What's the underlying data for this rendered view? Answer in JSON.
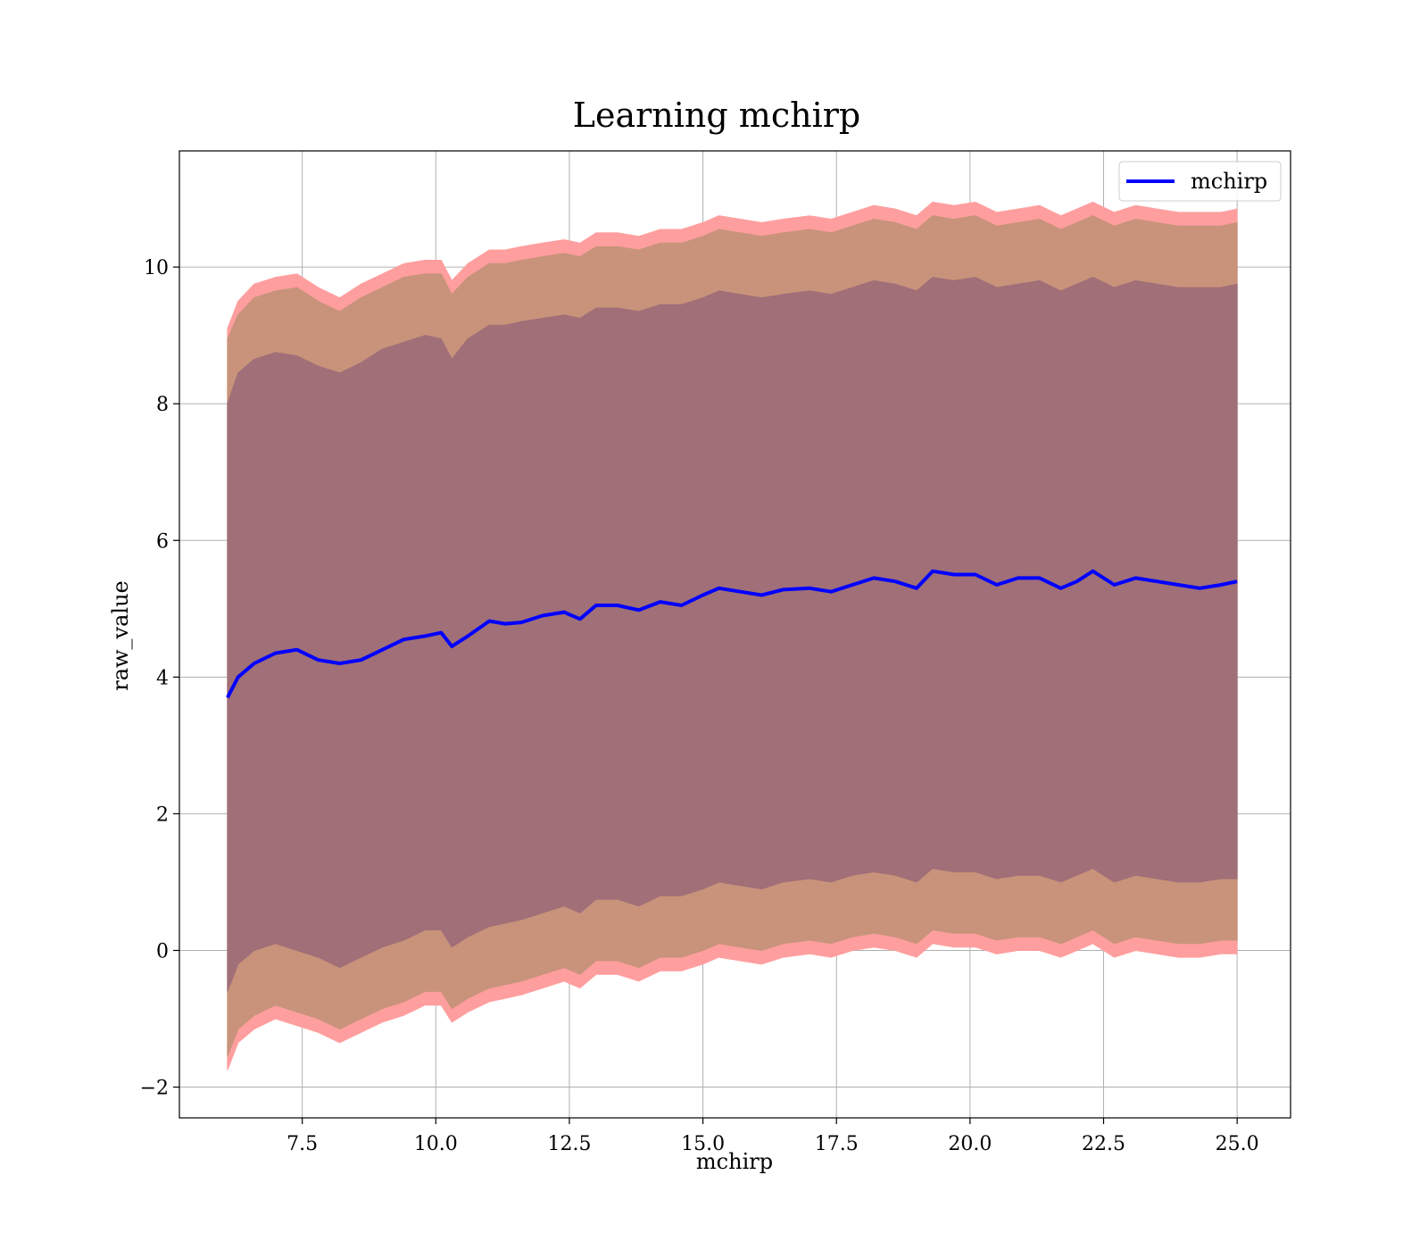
{
  "chart_data": {
    "type": "line",
    "title": "Learning mchirp",
    "xlabel": "mchirp",
    "ylabel": "raw_value",
    "xlim": [
      5.2,
      26.0
    ],
    "ylim": [
      -2.45,
      11.7
    ],
    "x_ticks": [
      7.5,
      10.0,
      12.5,
      15.0,
      17.5,
      20.0,
      22.5,
      25.0
    ],
    "x_tick_labels": [
      "7.5",
      "10.0",
      "12.5",
      "15.0",
      "17.5",
      "20.0",
      "22.5",
      "25.0"
    ],
    "y_ticks": [
      -2,
      0,
      2,
      4,
      6,
      8,
      10
    ],
    "y_tick_labels": [
      "−2",
      "0",
      "2",
      "4",
      "6",
      "8",
      "10"
    ],
    "grid": true,
    "legend_position": "top-right",
    "colors": {
      "line": "#0000ff",
      "outer_band": "#ff9e9e",
      "mid_band": "#c8937a",
      "inner_band": "#a06f78"
    },
    "x": [
      6.1,
      6.3,
      6.6,
      7.0,
      7.4,
      7.8,
      8.2,
      8.6,
      9.0,
      9.4,
      9.8,
      10.1,
      10.3,
      10.6,
      11.0,
      11.3,
      11.6,
      12.0,
      12.4,
      12.7,
      13.0,
      13.4,
      13.8,
      14.2,
      14.6,
      15.0,
      15.3,
      15.7,
      16.1,
      16.5,
      17.0,
      17.4,
      17.8,
      18.2,
      18.6,
      19.0,
      19.3,
      19.7,
      20.1,
      20.5,
      20.9,
      21.3,
      21.7,
      22.0,
      22.3,
      22.7,
      23.1,
      23.5,
      23.9,
      24.3,
      24.7,
      25.0
    ],
    "series": [
      {
        "name": "mchirp",
        "values": [
          3.7,
          4.0,
          4.2,
          4.35,
          4.4,
          4.25,
          4.2,
          4.25,
          4.4,
          4.55,
          4.6,
          4.65,
          4.45,
          4.6,
          4.82,
          4.78,
          4.8,
          4.9,
          4.95,
          4.85,
          5.05,
          5.05,
          4.98,
          5.1,
          5.05,
          5.2,
          5.3,
          5.25,
          5.2,
          5.28,
          5.3,
          5.25,
          5.35,
          5.45,
          5.4,
          5.3,
          5.55,
          5.5,
          5.5,
          5.35,
          5.45,
          5.45,
          5.3,
          5.4,
          5.55,
          5.35,
          5.45,
          5.4,
          5.35,
          5.3,
          5.35,
          5.4
        ]
      }
    ],
    "bands": [
      {
        "lower": [
          -1.75,
          -1.35,
          -1.15,
          -1.0,
          -1.1,
          -1.2,
          -1.35,
          -1.2,
          -1.05,
          -0.95,
          -0.8,
          -0.8,
          -1.05,
          -0.9,
          -0.75,
          -0.7,
          -0.65,
          -0.55,
          -0.45,
          -0.55,
          -0.35,
          -0.35,
          -0.45,
          -0.3,
          -0.3,
          -0.2,
          -0.1,
          -0.15,
          -0.2,
          -0.1,
          -0.05,
          -0.1,
          0.0,
          0.05,
          0.0,
          -0.1,
          0.1,
          0.05,
          0.05,
          -0.05,
          0.0,
          0.0,
          -0.1,
          0.0,
          0.1,
          -0.1,
          0.0,
          -0.05,
          -0.1,
          -0.1,
          -0.05,
          -0.05
        ],
        "upper": [
          9.1,
          9.5,
          9.75,
          9.85,
          9.9,
          9.7,
          9.55,
          9.75,
          9.9,
          10.05,
          10.1,
          10.1,
          9.8,
          10.05,
          10.25,
          10.25,
          10.3,
          10.35,
          10.4,
          10.35,
          10.5,
          10.5,
          10.45,
          10.55,
          10.55,
          10.65,
          10.75,
          10.7,
          10.65,
          10.7,
          10.75,
          10.7,
          10.8,
          10.9,
          10.85,
          10.75,
          10.95,
          10.9,
          10.95,
          10.8,
          10.85,
          10.9,
          10.75,
          10.85,
          10.95,
          10.8,
          10.9,
          10.85,
          10.8,
          10.8,
          10.8,
          10.85
        ]
      },
      {
        "lower": [
          -1.55,
          -1.15,
          -0.95,
          -0.8,
          -0.9,
          -1.0,
          -1.15,
          -1.0,
          -0.85,
          -0.75,
          -0.6,
          -0.6,
          -0.85,
          -0.7,
          -0.55,
          -0.5,
          -0.45,
          -0.35,
          -0.25,
          -0.35,
          -0.15,
          -0.15,
          -0.25,
          -0.1,
          -0.1,
          0.0,
          0.1,
          0.05,
          0.0,
          0.1,
          0.15,
          0.1,
          0.2,
          0.25,
          0.2,
          0.1,
          0.3,
          0.25,
          0.25,
          0.15,
          0.2,
          0.2,
          0.1,
          0.2,
          0.3,
          0.1,
          0.2,
          0.15,
          0.1,
          0.1,
          0.15,
          0.15
        ],
        "upper": [
          8.95,
          9.3,
          9.55,
          9.65,
          9.7,
          9.5,
          9.35,
          9.55,
          9.7,
          9.85,
          9.9,
          9.9,
          9.6,
          9.85,
          10.05,
          10.05,
          10.1,
          10.15,
          10.2,
          10.15,
          10.3,
          10.3,
          10.25,
          10.35,
          10.35,
          10.45,
          10.55,
          10.5,
          10.45,
          10.5,
          10.55,
          10.5,
          10.6,
          10.7,
          10.65,
          10.55,
          10.75,
          10.7,
          10.75,
          10.6,
          10.65,
          10.7,
          10.55,
          10.65,
          10.75,
          10.6,
          10.7,
          10.65,
          10.6,
          10.6,
          10.6,
          10.65
        ]
      },
      {
        "lower": [
          -0.6,
          -0.2,
          0.0,
          0.1,
          0.0,
          -0.1,
          -0.25,
          -0.1,
          0.05,
          0.15,
          0.3,
          0.3,
          0.05,
          0.2,
          0.35,
          0.4,
          0.45,
          0.55,
          0.65,
          0.55,
          0.75,
          0.75,
          0.65,
          0.8,
          0.8,
          0.9,
          1.0,
          0.95,
          0.9,
          1.0,
          1.05,
          1.0,
          1.1,
          1.15,
          1.1,
          1.0,
          1.2,
          1.15,
          1.15,
          1.05,
          1.1,
          1.1,
          1.0,
          1.1,
          1.2,
          1.0,
          1.1,
          1.05,
          1.0,
          1.0,
          1.05,
          1.05
        ],
        "upper": [
          8.0,
          8.45,
          8.65,
          8.75,
          8.7,
          8.55,
          8.45,
          8.6,
          8.8,
          8.9,
          9.0,
          8.95,
          8.65,
          8.95,
          9.15,
          9.15,
          9.2,
          9.25,
          9.3,
          9.25,
          9.4,
          9.4,
          9.35,
          9.45,
          9.45,
          9.55,
          9.65,
          9.6,
          9.55,
          9.6,
          9.65,
          9.6,
          9.7,
          9.8,
          9.75,
          9.65,
          9.85,
          9.8,
          9.85,
          9.7,
          9.75,
          9.8,
          9.65,
          9.75,
          9.85,
          9.7,
          9.8,
          9.75,
          9.7,
          9.7,
          9.7,
          9.75
        ]
      }
    ]
  }
}
